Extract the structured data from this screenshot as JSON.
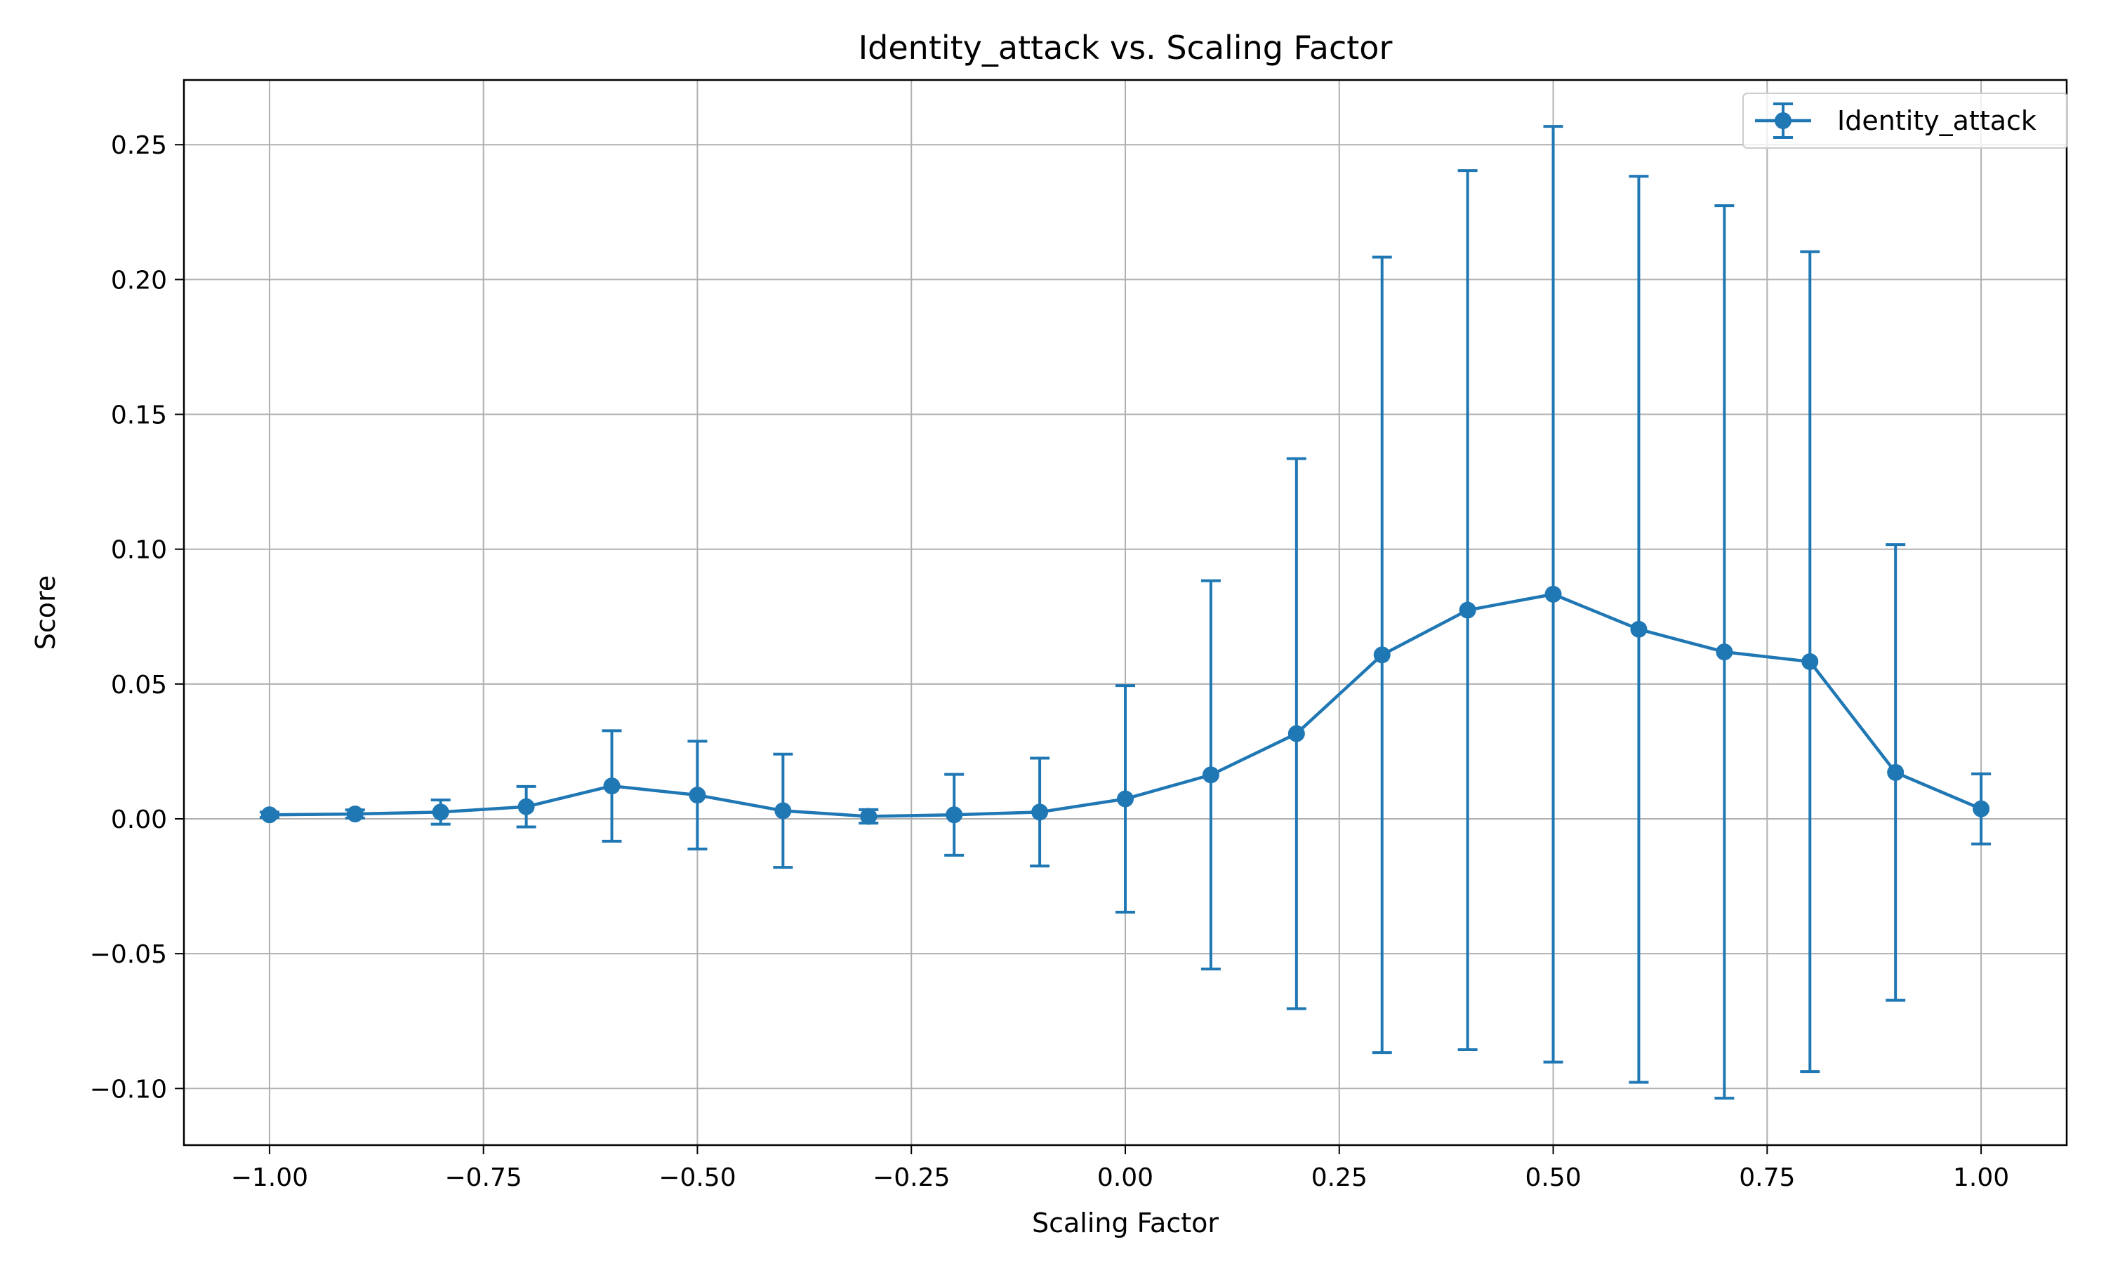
{
  "chart_data": {
    "type": "line",
    "title": "Identity_attack vs. Scaling Factor",
    "xlabel": "Scaling Factor",
    "ylabel": "Score",
    "xlim": [
      -1.1,
      1.1
    ],
    "ylim": [
      -0.121,
      0.274
    ],
    "x_ticks": [
      -1.0,
      -0.75,
      -0.5,
      -0.25,
      0.0,
      0.25,
      0.5,
      0.75,
      1.0
    ],
    "x_tick_labels": [
      "−1.00",
      "−0.75",
      "−0.50",
      "−0.25",
      "0.00",
      "0.25",
      "0.50",
      "0.75",
      "1.00"
    ],
    "y_ticks": [
      -0.1,
      -0.05,
      0.0,
      0.05,
      0.1,
      0.15,
      0.2,
      0.25
    ],
    "y_tick_labels": [
      "−0.10",
      "−0.05",
      "0.00",
      "0.05",
      "0.10",
      "0.15",
      "0.20",
      "0.25"
    ],
    "grid": true,
    "legend_position": "top-right",
    "color": "#1f77b4",
    "series": [
      {
        "name": "Identity_attack",
        "x": [
          -1.0,
          -0.9,
          -0.8,
          -0.7,
          -0.6,
          -0.5,
          -0.4,
          -0.3,
          -0.2,
          -0.1,
          0.0,
          0.1,
          0.2,
          0.3,
          0.4,
          0.5,
          0.6,
          0.7,
          0.8,
          0.9,
          1.0
        ],
        "y": [
          0.0015,
          0.0018,
          0.0025,
          0.0045,
          0.0122,
          0.0088,
          0.003,
          0.0009,
          0.0015,
          0.0025,
          0.0074,
          0.0163,
          0.0316,
          0.0608,
          0.0774,
          0.0833,
          0.0703,
          0.0619,
          0.0583,
          0.0172,
          0.0037
        ],
        "error": [
          0.001,
          0.0015,
          0.0045,
          0.0075,
          0.0205,
          0.02,
          0.021,
          0.0025,
          0.015,
          0.02,
          0.042,
          0.072,
          0.102,
          0.1475,
          0.163,
          0.1735,
          0.168,
          0.1655,
          0.152,
          0.0845,
          0.013
        ]
      }
    ]
  }
}
